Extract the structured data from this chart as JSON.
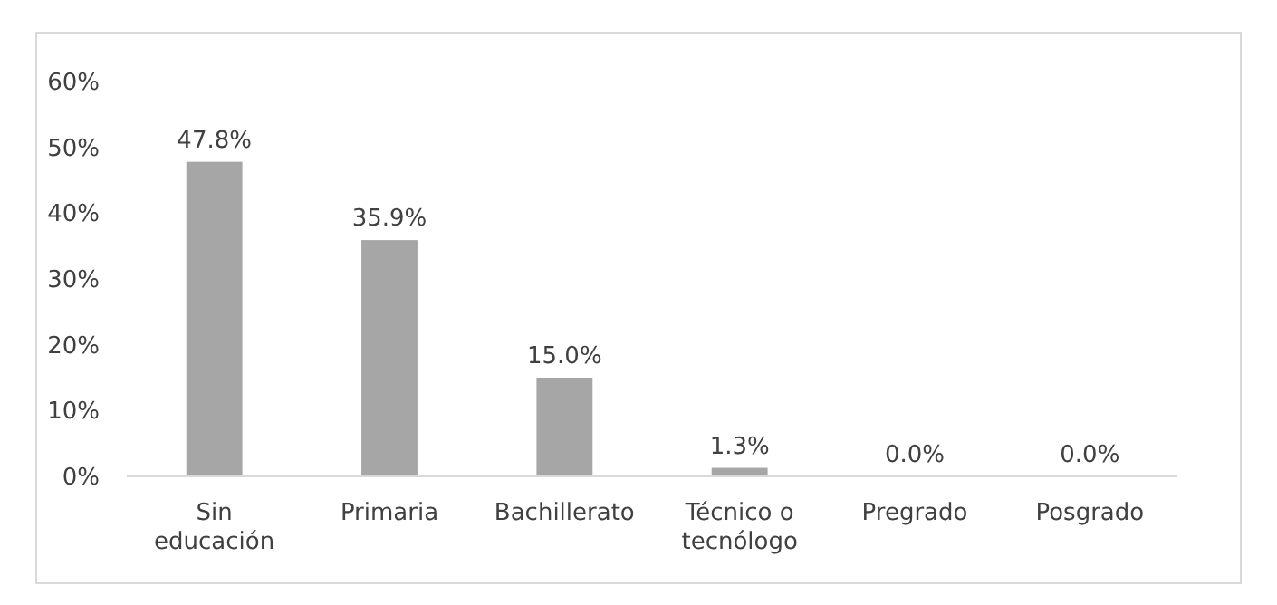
{
  "chart_data": {
    "type": "bar",
    "categories": [
      "Sin educación",
      "Primaria",
      "Bachillerato",
      "Técnico o tecnólogo",
      "Pregrado",
      "Posgrado"
    ],
    "values": [
      47.8,
      35.9,
      15.0,
      1.3,
      0.0,
      0.0
    ],
    "value_labels": [
      "47.8%",
      "35.9%",
      "15.0%",
      "1.3%",
      "0.0%",
      "0.0%"
    ],
    "color": "#a6a6a6",
    "ylim": [
      0,
      60
    ],
    "yticks": [
      {
        "value": 0,
        "label": "0%"
      },
      {
        "value": 10,
        "label": "10%"
      },
      {
        "value": 20,
        "label": "20%"
      },
      {
        "value": 30,
        "label": "30%"
      },
      {
        "value": 40,
        "label": "40%"
      },
      {
        "value": 50,
        "label": "50%"
      },
      {
        "value": 60,
        "label": "60%"
      }
    ],
    "grid": false
  }
}
